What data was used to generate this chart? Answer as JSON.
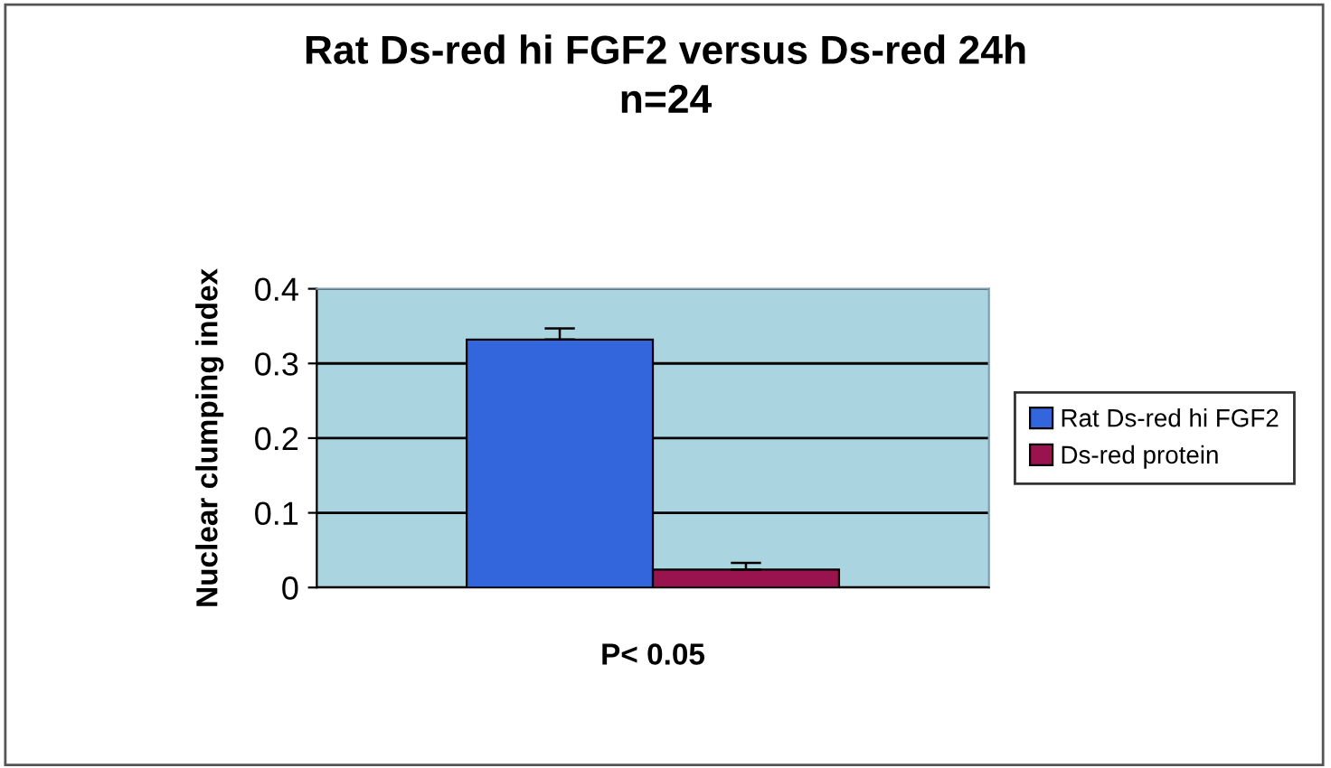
{
  "chart_data": {
    "type": "bar",
    "title": "Rat Ds-red hi FGF2 versus Ds-red 24h",
    "subtitle": "n=24",
    "ylabel": "Nuclear clumping index",
    "categories": [
      "P< 0.05"
    ],
    "series": [
      {
        "name": "Rat Ds-red hi FGF2",
        "color": "#3366dd",
        "values": [
          0.332
        ],
        "errors": [
          [
            0.332,
            0.347
          ]
        ]
      },
      {
        "name": "Ds-red protein",
        "color": "#99134f",
        "values": [
          0.024
        ],
        "errors": [
          [
            0.024,
            0.033
          ]
        ]
      }
    ],
    "ylim": [
      0,
      0.4
    ],
    "yticks": [
      0,
      0.1,
      0.2,
      0.3,
      0.4
    ],
    "grid": "y",
    "legend": "right"
  }
}
